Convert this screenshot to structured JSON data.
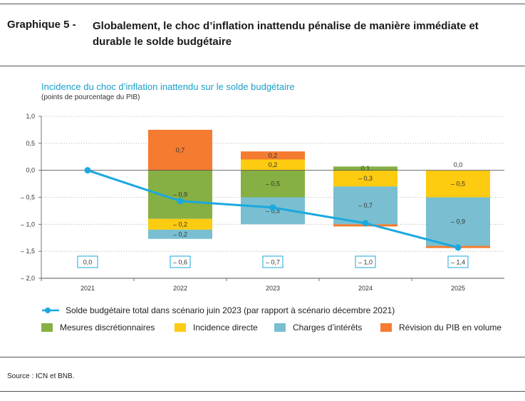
{
  "header": {
    "graph_number": "Graphique 5 -",
    "title": "Globalement, le choc d’inflation inattendu pénalise de manière immédiate et durable le solde budgétaire"
  },
  "chart_data": {
    "type": "bar",
    "stacked": true,
    "title": "Incidence du choc d’inflation inattendu sur le solde budgétaire",
    "subtitle": "(points de pourcentage du PIB)",
    "categories": [
      "2021",
      "2022",
      "2023",
      "2024",
      "2025"
    ],
    "ylim": [
      -2.0,
      1.0
    ],
    "yticks": [
      1.0,
      0.5,
      0.0,
      -0.5,
      -1.0,
      -1.5,
      -2.0
    ],
    "ytick_labels": [
      "1,0",
      "0,5",
      "0,0",
      "– 0,5",
      "– 1,0",
      "– 1,5",
      "– 2,0"
    ],
    "series": [
      {
        "name": "Mesures discrétionnaires",
        "color": "#86b043",
        "values": [
          0,
          -0.9,
          -0.5,
          0.07,
          0
        ],
        "labels": [
          "",
          "– 0,9",
          "– 0,5",
          "0,1",
          ""
        ]
      },
      {
        "name": "Incidence directe",
        "color": "#fdcb0f",
        "values": [
          0,
          -0.2,
          0.2,
          -0.3,
          -0.5
        ],
        "labels": [
          "",
          "– 0,2",
          "0,2",
          "– 0,3",
          "– 0,5"
        ]
      },
      {
        "name": "Charges d’intérêts",
        "color": "#79bfd1",
        "values": [
          0,
          -0.17,
          -0.5,
          -0.7,
          -0.9
        ],
        "labels": [
          "",
          "– 0,2",
          "– 0,5",
          "– 0,7",
          "– 0,9"
        ]
      },
      {
        "name": "Révision du PIB en volume",
        "color": "#f47b30",
        "values": [
          0,
          0.75,
          0.15,
          -0.04,
          -0.04
        ],
        "labels": [
          "",
          "0,7",
          "0,2",
          "",
          ""
        ]
      }
    ],
    "extra_labels": [
      {
        "category": "2025",
        "text": "0,0",
        "y": 0.1
      }
    ],
    "line": {
      "name": "Solde budgétaire total dans scénario juin 2023 (par rapport à scénario décembre 2021)",
      "color": "#1aa8df",
      "values": [
        0.0,
        -0.57,
        -0.69,
        -0.98,
        -1.43
      ],
      "labels": [
        "0,0",
        "– 0,6",
        "– 0,7",
        "– 1,0",
        "– 1,4"
      ]
    }
  },
  "legend": {
    "line_label": "Solde budgétaire total dans scénario juin 2023 (par rapport à scénario décembre 2021)",
    "items": [
      {
        "label": "Mesures discrétionnaires",
        "color": "#86b043"
      },
      {
        "label": "Incidence directe",
        "color": "#fdcb0f"
      },
      {
        "label": "Charges d’intérêts",
        "color": "#79bfd1"
      },
      {
        "label": "Révision du PIB en volume",
        "color": "#f47b30"
      }
    ]
  },
  "source": "Source : ICN et BNB."
}
